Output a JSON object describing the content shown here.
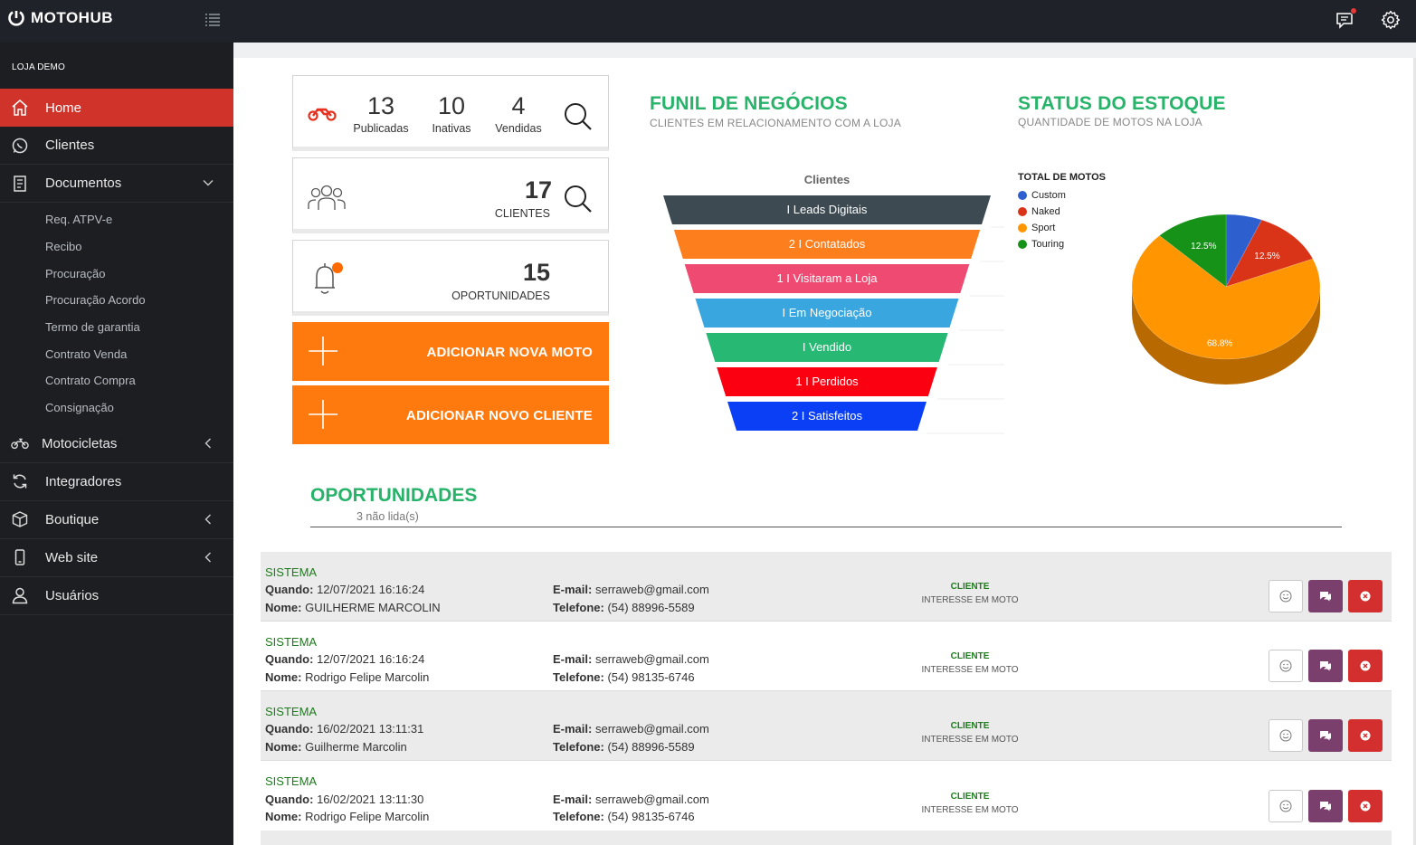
{
  "brand": {
    "name": "MOTOHUB"
  },
  "store_label": "LOJA DEMO",
  "sidebar": {
    "items": [
      {
        "label": "Home",
        "icon": "home-icon",
        "active": true
      },
      {
        "label": "Clientes",
        "icon": "whatsapp-icon"
      },
      {
        "label": "Documentos",
        "icon": "document-icon",
        "expanded": true
      },
      {
        "label": "Motocicletas",
        "icon": "motorcycle-icon"
      },
      {
        "label": "Integradores",
        "icon": "sync-icon"
      },
      {
        "label": "Boutique",
        "icon": "box-icon"
      },
      {
        "label": "Web site",
        "icon": "mobile-icon"
      },
      {
        "label": "Usuários",
        "icon": "user-icon"
      }
    ],
    "documentos_sub": [
      "Req. ATPV-e",
      "Recibo",
      "Procuração",
      "Procuração Acordo",
      "Termo de garantia",
      "Contrato Venda",
      "Contrato Compra",
      "Consignação"
    ]
  },
  "stats": {
    "motos": {
      "publicadas": {
        "value": "13",
        "label": "Publicadas"
      },
      "inativas": {
        "value": "10",
        "label": "Inativas"
      },
      "vendidas": {
        "value": "4",
        "label": "Vendidas"
      }
    },
    "clientes": {
      "value": "17",
      "label": "CLIENTES"
    },
    "oportunidades": {
      "value": "15",
      "label": "OPORTUNIDADES"
    }
  },
  "buttons": {
    "add_moto": "ADICIONAR NOVA MOTO",
    "add_cliente": "ADICIONAR NOVO CLIENTE"
  },
  "funil": {
    "title": "FUNIL DE NEGÓCIOS",
    "subtitle": "CLIENTES EM RELACIONAMENTO COM A LOJA"
  },
  "estoque": {
    "title": "STATUS DO ESTOQUE",
    "subtitle": "QUANTIDADE DE MOTOS NA LOJA"
  },
  "chart_data": [
    {
      "type": "funnel",
      "title": "Clientes",
      "categories": [
        "Leads Digitais",
        "Contatados",
        "Visitaram a Loja",
        "Em Negociação",
        "Vendido",
        "Perdidos",
        "Satisfeitos"
      ],
      "values": [
        null,
        2,
        1,
        null,
        null,
        1,
        2
      ],
      "labels": [
        "I Leads Digitais",
        "2 I Contatados",
        "1 I Visitaram a Loja",
        "I Em Negociação",
        "I Vendido",
        "1 I Perdidos",
        "2 I Satisfeitos"
      ],
      "colors": [
        "#3d4a52",
        "#fd7e1c",
        "#ef4b72",
        "#3aa6e0",
        "#27b874",
        "#fb0010",
        "#0a3ff5"
      ]
    },
    {
      "type": "pie",
      "title": "TOTAL DE MOTOS",
      "legend_position": "top-left",
      "categories": [
        "Custom",
        "Naked",
        "Sport",
        "Touring"
      ],
      "values": [
        6.2,
        12.5,
        68.8,
        12.5
      ],
      "data_labels": [
        "",
        "12.5%",
        "68.8%",
        "12.5%"
      ],
      "colors": [
        "#2e5fcf",
        "#d93318",
        "#ff9500",
        "#159217"
      ],
      "side_colors": [
        "#1f418e",
        "#962410",
        "#b86a00",
        "#0e6710"
      ]
    }
  ],
  "oportunidades": {
    "title": "OPORTUNIDADES",
    "unread": "3 não lida(s)",
    "labels": {
      "when": "Quando:",
      "name": "Nome:",
      "email": "E-mail:",
      "phone": "Telefone:"
    },
    "rows": [
      {
        "source": "SISTEMA",
        "when": "12/07/2021 16:16:24",
        "name": "GUILHERME MARCOLIN",
        "email": "serraweb@gmail.com",
        "phone": "(54) 88996-5589",
        "type": "CLIENTE",
        "interest": "INTERESSE EM MOTO"
      },
      {
        "source": "SISTEMA",
        "when": "12/07/2021 16:16:24",
        "name": "Rodrigo Felipe Marcolin",
        "email": "serraweb@gmail.com",
        "phone": "(54) 98135-6746",
        "type": "CLIENTE",
        "interest": "INTERESSE EM MOTO"
      },
      {
        "source": "SISTEMA",
        "when": "16/02/2021 13:11:31",
        "name": "Guilherme Marcolin",
        "email": "serraweb@gmail.com",
        "phone": "(54) 88996-5589",
        "type": "CLIENTE",
        "interest": "INTERESSE EM MOTO"
      },
      {
        "source": "SISTEMA",
        "when": "16/02/2021 13:11:30",
        "name": "Rodrigo Felipe Marcolin",
        "email": "serraweb@gmail.com",
        "phone": "(54) 98135-6746",
        "type": "CLIENTE",
        "interest": "INTERESSE EM MOTO"
      }
    ]
  }
}
